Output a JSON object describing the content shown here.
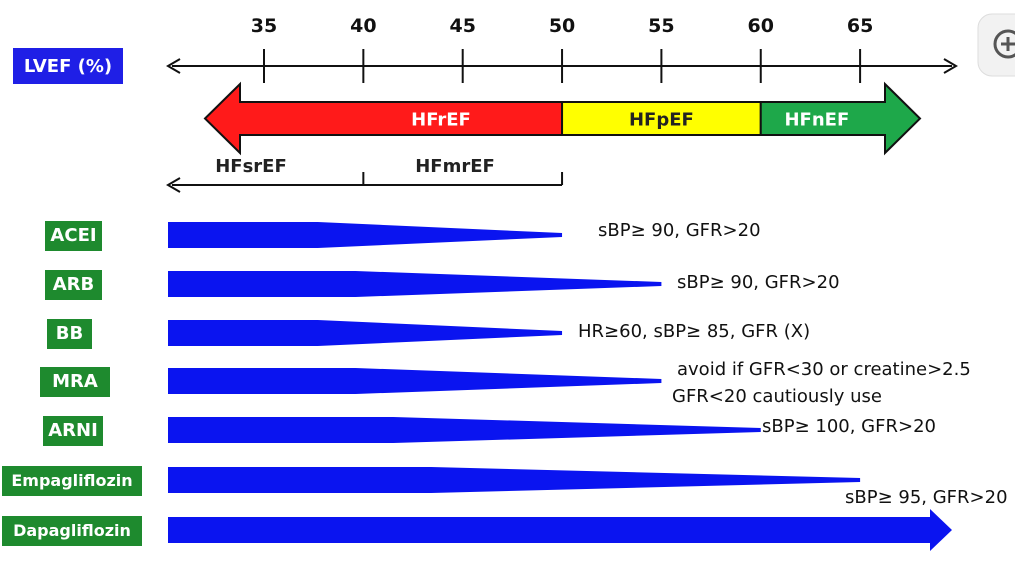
{
  "axis": {
    "label": "LVEF (%)",
    "ticks": [
      35,
      40,
      45,
      50,
      55,
      60,
      65
    ]
  },
  "categories": [
    {
      "label": "HFrEF",
      "from": 30,
      "to": 50,
      "color": "#ff1a1a",
      "text_color": "#ffffff"
    },
    {
      "label": "HFpEF",
      "from": 50,
      "to": 60,
      "color": "#ffff00",
      "text_color": "#222222"
    },
    {
      "label": "HFnEF",
      "from": 60,
      "to": 68,
      "color": "#1ea84a",
      "text_color": "#ffffff"
    }
  ],
  "subcategories": [
    {
      "label": "HFsrEF",
      "from": 30,
      "to": 40
    },
    {
      "label": "HFmrEF",
      "from": 40,
      "to": 50
    }
  ],
  "drugs": [
    {
      "name": "ACEI",
      "end": 50,
      "note": "sBP≥ 90, GFR>20",
      "note2": ""
    },
    {
      "name": "ARB",
      "end": 55,
      "note": "sBP≥ 90, GFR>20",
      "note2": ""
    },
    {
      "name": "BB",
      "end": 50,
      "note": "HR≥60,  sBP≥ 85,  GFR (X)",
      "note2": ""
    },
    {
      "name": "MRA",
      "end": 55,
      "note": "avoid if GFR<30 or creatine>2.5",
      "note2": "GFR<20 cautiously use"
    },
    {
      "name": "ARNI",
      "end": 60,
      "note": "sBP≥ 100, GFR>20",
      "note2": ""
    },
    {
      "name": "Empagliflozin",
      "end": 65,
      "note": "sBP≥ 95, GFR>20",
      "note2": ""
    },
    {
      "name": "Dapagliflozin",
      "end": 70,
      "note": "",
      "note2": ""
    }
  ],
  "colors": {
    "lvef_box": "#1f1fe6",
    "drug_box": "#1e8a2e",
    "drug_bar": "#0a14f0",
    "axis": "#111111"
  }
}
